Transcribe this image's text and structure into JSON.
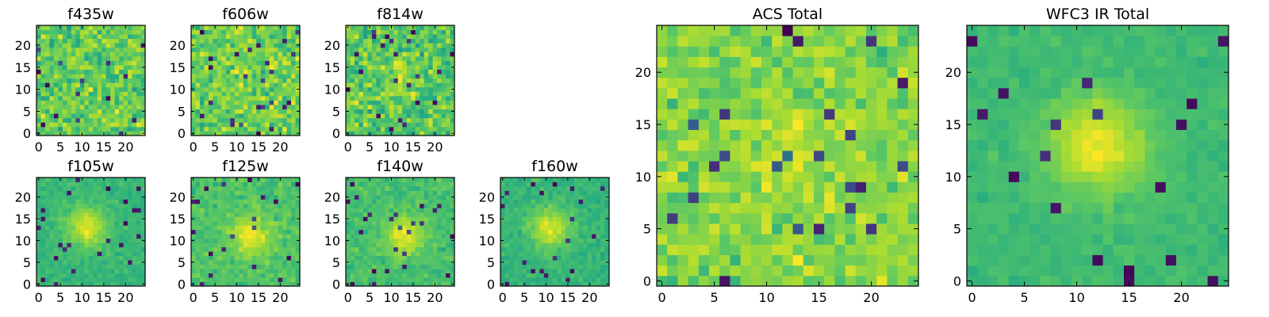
{
  "chart_data": [
    {
      "type": "heatmap",
      "title": "f435w",
      "size": 25,
      "xlim": [
        0,
        24
      ],
      "ylim": [
        0,
        24
      ],
      "xticks": [
        0,
        5,
        10,
        15,
        20
      ],
      "yticks": [
        0,
        5,
        10,
        15,
        20
      ],
      "seed": 11,
      "source_amp": 0.0,
      "noise": 1.0,
      "center": [
        12,
        12
      ]
    },
    {
      "type": "heatmap",
      "title": "f606w",
      "size": 25,
      "xlim": [
        0,
        24
      ],
      "ylim": [
        0,
        24
      ],
      "xticks": [
        0,
        5,
        10,
        15,
        20
      ],
      "yticks": [
        0,
        5,
        10,
        15,
        20
      ],
      "seed": 23,
      "source_amp": 0.15,
      "noise": 1.0,
      "center": [
        12,
        12
      ]
    },
    {
      "type": "heatmap",
      "title": "f814w",
      "size": 25,
      "xlim": [
        0,
        24
      ],
      "ylim": [
        0,
        24
      ],
      "xticks": [
        0,
        5,
        10,
        15,
        20
      ],
      "yticks": [
        0,
        5,
        10,
        15,
        20
      ],
      "seed": 37,
      "source_amp": 0.35,
      "noise": 1.0,
      "center": [
        12,
        13
      ]
    },
    {
      "type": "heatmap",
      "title": "f105w",
      "size": 25,
      "xlim": [
        0,
        24
      ],
      "ylim": [
        0,
        24
      ],
      "xticks": [
        0,
        5,
        10,
        15,
        20
      ],
      "yticks": [
        0,
        5,
        10,
        15,
        20
      ],
      "seed": 41,
      "source_amp": 1.0,
      "noise": 0.35,
      "center": [
        11,
        13
      ]
    },
    {
      "type": "heatmap",
      "title": "f125w",
      "size": 25,
      "xlim": [
        0,
        24
      ],
      "ylim": [
        0,
        24
      ],
      "xticks": [
        0,
        5,
        10,
        15,
        20
      ],
      "yticks": [
        0,
        5,
        10,
        15,
        20
      ],
      "seed": 53,
      "source_amp": 0.8,
      "noise": 0.5,
      "center": [
        13,
        11
      ]
    },
    {
      "type": "heatmap",
      "title": "f140w",
      "size": 25,
      "xlim": [
        0,
        24
      ],
      "ylim": [
        0,
        24
      ],
      "xticks": [
        0,
        5,
        10,
        15,
        20
      ],
      "yticks": [
        0,
        5,
        10,
        15,
        20
      ],
      "seed": 67,
      "source_amp": 0.9,
      "noise": 0.45,
      "center": [
        13,
        11
      ]
    },
    {
      "type": "heatmap",
      "title": "f160w",
      "size": 25,
      "xlim": [
        0,
        24
      ],
      "ylim": [
        0,
        24
      ],
      "xticks": [
        0,
        5,
        10,
        15,
        20
      ],
      "yticks": [
        0,
        5,
        10,
        15,
        20
      ],
      "seed": 79,
      "source_amp": 1.0,
      "noise": 0.4,
      "center": [
        11,
        13
      ]
    },
    {
      "type": "heatmap",
      "title": "ACS Total",
      "size": 25,
      "xlim": [
        0,
        24
      ],
      "ylim": [
        0,
        24
      ],
      "xticks": [
        0,
        5,
        10,
        15,
        20
      ],
      "yticks": [
        0,
        5,
        10,
        15,
        20
      ],
      "seed": 97,
      "source_amp": 0.25,
      "noise": 0.8,
      "center": [
        12,
        12
      ]
    },
    {
      "type": "heatmap",
      "title": "WFC3 IR Total",
      "size": 25,
      "xlim": [
        0,
        24
      ],
      "ylim": [
        0,
        24
      ],
      "xticks": [
        0,
        5,
        10,
        15,
        20
      ],
      "yticks": [
        0,
        5,
        10,
        15,
        20
      ],
      "seed": 113,
      "source_amp": 1.0,
      "noise": 0.25,
      "center": [
        12,
        13
      ]
    }
  ],
  "colormap": "viridis"
}
